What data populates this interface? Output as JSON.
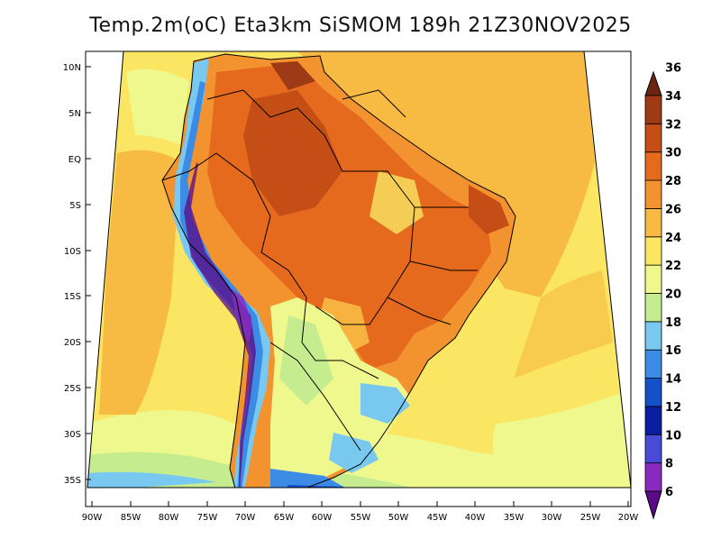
{
  "title": "Temp.2m(oC) Eta3km SiSMOM 189h 21Z30NOV2025",
  "lat_labels": [
    "10N",
    "5N",
    "EQ",
    "5S",
    "10S",
    "15S",
    "20S",
    "25S",
    "30S",
    "35S"
  ],
  "lon_labels": [
    "90W",
    "85W",
    "80W",
    "75W",
    "70W",
    "65W",
    "60W",
    "55W",
    "50W",
    "45W",
    "40W",
    "35W",
    "30W",
    "25W",
    "20W"
  ],
  "colorbar": {
    "labels": [
      "6",
      "8",
      "10",
      "12",
      "14",
      "16",
      "18",
      "20",
      "22",
      "24",
      "26",
      "28",
      "30",
      "32",
      "34",
      "36"
    ],
    "colors": [
      "#5a0a86",
      "#8a2bc0",
      "#4a4ad8",
      "#0a1ea0",
      "#1450c8",
      "#3c8ce6",
      "#78c8f0",
      "#c6ec90",
      "#eef88c",
      "#fae662",
      "#f7bb44",
      "#f29330",
      "#e56a1e",
      "#c54d16",
      "#9e3a16",
      "#6e2412"
    ]
  }
}
